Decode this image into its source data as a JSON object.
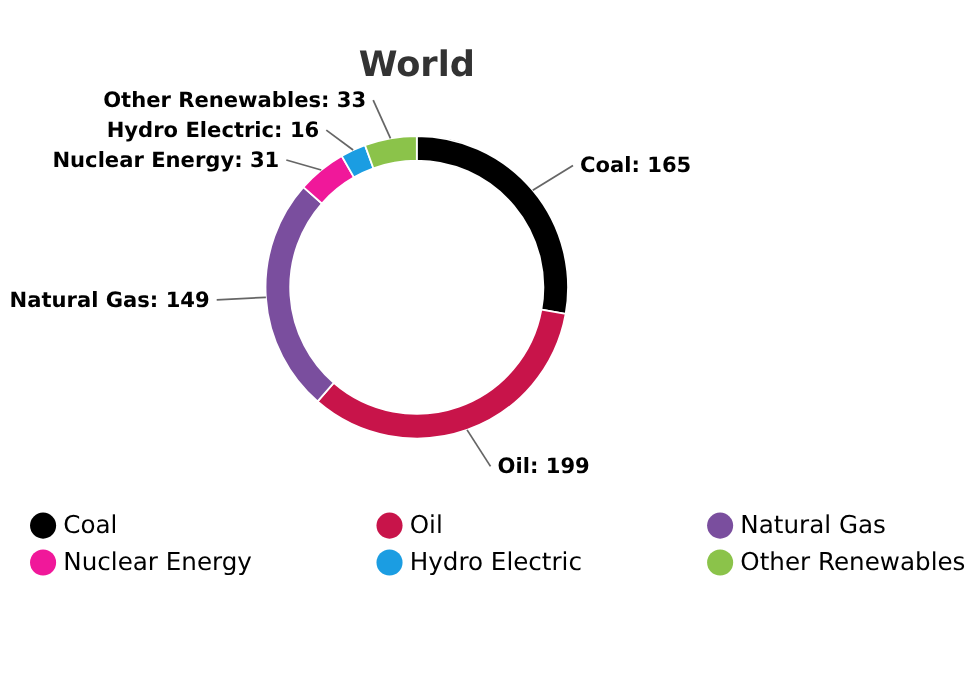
{
  "chart_data": {
    "type": "donut",
    "title": "World",
    "categories": [
      "Coal",
      "Oil",
      "Natural Gas",
      "Nuclear Energy",
      "Hydro Electric",
      "Other Renewables"
    ],
    "values": [
      165,
      199,
      149,
      31,
      16,
      33
    ],
    "value_labels": [
      "Coal: 165",
      "Oil: 199",
      "Natural Gas: 149",
      "Nuclear Energy: 31",
      "Hydro Electric: 16",
      "Other Renewables: 33"
    ],
    "colors": [
      "#000000",
      "#c8144a",
      "#7a4e9e",
      "#f0189a",
      "#1b9de2",
      "#8bc34a"
    ],
    "legend": "bottom"
  }
}
